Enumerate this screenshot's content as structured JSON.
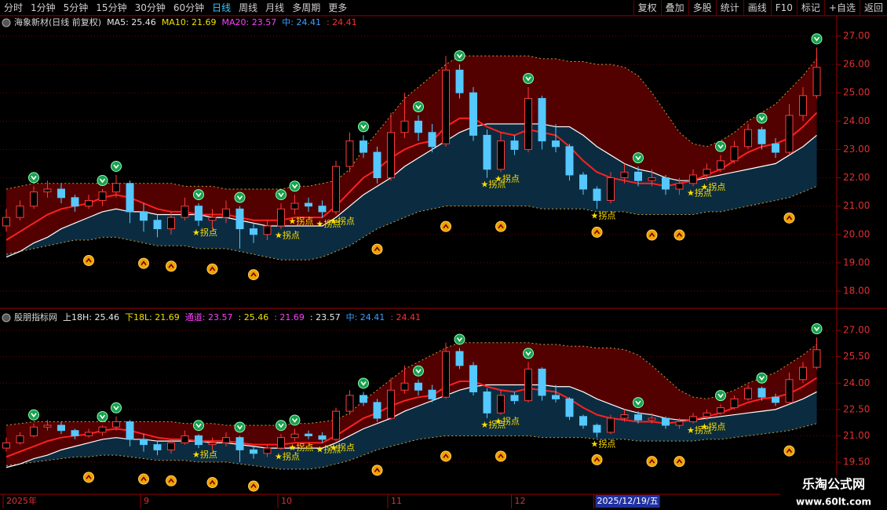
{
  "toolbar": {
    "left": [
      "分时",
      "1分钟",
      "5分钟",
      "15分钟",
      "30分钟",
      "60分钟",
      "日线",
      "周线",
      "月线",
      "多周期",
      "更多"
    ],
    "right": [
      "复权",
      "叠加",
      "多股",
      "统计",
      "画线",
      "F10",
      "标记",
      "+自选",
      "返回"
    ]
  },
  "watermark": [
    "乐淘公式网",
    "www.60lt.com"
  ],
  "chart_data": {
    "type": "candlestick",
    "categories": [
      "2025年",
      null,
      null,
      null,
      null,
      null,
      null,
      null,
      null,
      null,
      "9",
      null,
      null,
      null,
      null,
      null,
      null,
      null,
      null,
      null,
      "10",
      null,
      null,
      null,
      null,
      null,
      null,
      null,
      "11",
      null,
      null,
      null,
      null,
      null,
      null,
      null,
      null,
      "12",
      null,
      null,
      null,
      null,
      null,
      "2025/12/19/五",
      null,
      null,
      null,
      null,
      null,
      null,
      null,
      null,
      null,
      null,
      null,
      null,
      null,
      null,
      null,
      null
    ],
    "candles": [
      [
        20.3,
        20.9,
        20.1,
        20.6
      ],
      [
        20.6,
        21.2,
        20.5,
        21.0
      ],
      [
        21.0,
        21.7,
        20.9,
        21.5
      ],
      [
        21.5,
        21.9,
        21.3,
        21.6
      ],
      [
        21.6,
        21.8,
        21.1,
        21.3
      ],
      [
        21.3,
        21.4,
        20.8,
        21.0
      ],
      [
        21.0,
        21.4,
        20.9,
        21.2
      ],
      [
        21.2,
        21.6,
        21.0,
        21.5
      ],
      [
        21.5,
        22.1,
        21.3,
        21.8
      ],
      [
        21.8,
        21.9,
        20.4,
        20.8
      ],
      [
        20.8,
        21.1,
        20.1,
        20.5
      ],
      [
        20.5,
        20.7,
        19.9,
        20.2
      ],
      [
        20.2,
        20.8,
        20.0,
        20.6
      ],
      [
        20.6,
        21.3,
        20.5,
        21.0
      ],
      [
        21.0,
        21.1,
        20.3,
        20.5
      ],
      [
        20.5,
        20.9,
        20.2,
        20.6
      ],
      [
        20.6,
        21.2,
        20.4,
        20.9
      ],
      [
        20.9,
        21.0,
        19.5,
        20.2
      ],
      [
        20.2,
        20.4,
        19.7,
        20.0
      ],
      [
        20.0,
        20.5,
        19.8,
        20.3
      ],
      [
        20.3,
        21.1,
        20.2,
        20.9
      ],
      [
        20.9,
        21.4,
        20.7,
        21.1
      ],
      [
        21.1,
        21.3,
        20.8,
        21.0
      ],
      [
        21.0,
        21.2,
        20.6,
        20.8
      ],
      [
        20.8,
        22.6,
        20.7,
        22.4
      ],
      [
        22.4,
        23.6,
        22.2,
        23.3
      ],
      [
        23.3,
        23.5,
        22.7,
        22.9
      ],
      [
        22.9,
        23.1,
        21.8,
        22.0
      ],
      [
        22.0,
        24.3,
        21.9,
        23.6
      ],
      [
        23.6,
        25.0,
        23.4,
        24.0
      ],
      [
        24.0,
        24.2,
        23.3,
        23.6
      ],
      [
        23.6,
        23.9,
        22.9,
        23.1
      ],
      [
        23.2,
        26.3,
        23.1,
        25.8
      ],
      [
        25.8,
        26.0,
        24.8,
        25.0
      ],
      [
        25.0,
        25.2,
        23.3,
        23.5
      ],
      [
        23.5,
        23.7,
        22.0,
        22.3
      ],
      [
        22.3,
        23.6,
        22.2,
        23.3
      ],
      [
        23.3,
        23.5,
        22.8,
        23.0
      ],
      [
        23.0,
        25.2,
        22.9,
        24.8
      ],
      [
        24.8,
        24.9,
        23.0,
        23.3
      ],
      [
        23.3,
        23.9,
        22.9,
        23.1
      ],
      [
        23.1,
        23.2,
        21.9,
        22.1
      ],
      [
        22.1,
        22.2,
        21.4,
        21.6
      ],
      [
        21.6,
        21.7,
        20.9,
        21.2
      ],
      [
        21.2,
        22.2,
        21.1,
        22.0
      ],
      [
        22.0,
        22.5,
        21.8,
        22.2
      ],
      [
        22.2,
        22.4,
        21.7,
        21.9
      ],
      [
        21.9,
        22.3,
        21.7,
        22.0
      ],
      [
        22.0,
        22.1,
        21.4,
        21.6
      ],
      [
        21.6,
        22.0,
        21.4,
        21.8
      ],
      [
        21.8,
        22.3,
        21.7,
        22.1
      ],
      [
        22.1,
        22.5,
        21.9,
        22.3
      ],
      [
        22.3,
        22.8,
        22.2,
        22.6
      ],
      [
        22.6,
        23.3,
        22.5,
        23.1
      ],
      [
        23.1,
        23.9,
        23.0,
        23.7
      ],
      [
        23.7,
        23.8,
        23.0,
        23.2
      ],
      [
        23.2,
        23.4,
        22.7,
        22.9
      ],
      [
        22.9,
        24.6,
        22.8,
        24.2
      ],
      [
        24.2,
        25.2,
        24.0,
        24.9
      ],
      [
        24.9,
        26.6,
        24.8,
        25.9
      ]
    ],
    "upper": [
      21.6,
      21.7,
      21.8,
      21.8,
      21.8,
      21.8,
      21.8,
      21.8,
      21.8,
      21.8,
      21.8,
      21.8,
      21.8,
      21.7,
      21.7,
      21.7,
      21.6,
      21.6,
      21.6,
      21.6,
      21.6,
      21.7,
      21.7,
      21.8,
      21.9,
      22.3,
      23.0,
      23.6,
      24.2,
      24.8,
      25.2,
      25.6,
      26.0,
      26.3,
      26.3,
      26.3,
      26.3,
      26.3,
      26.3,
      26.2,
      26.2,
      26.1,
      26.1,
      26.0,
      26.0,
      25.9,
      25.6,
      25.0,
      24.3,
      23.6,
      23.2,
      23.1,
      23.3,
      23.6,
      24.0,
      24.3,
      24.6,
      25.1,
      25.6,
      26.2
    ],
    "lower": [
      19.3,
      19.4,
      19.5,
      19.6,
      19.7,
      19.8,
      19.8,
      19.9,
      19.9,
      19.8,
      19.7,
      19.6,
      19.6,
      19.6,
      19.5,
      19.5,
      19.5,
      19.4,
      19.3,
      19.2,
      19.1,
      19.1,
      19.1,
      19.2,
      19.4,
      19.6,
      19.9,
      20.2,
      20.4,
      20.6,
      20.8,
      20.9,
      21.0,
      21.0,
      21.0,
      21.0,
      21.0,
      21.0,
      21.0,
      20.9,
      20.9,
      20.9,
      20.9,
      20.8,
      20.8,
      20.8,
      20.7,
      20.7,
      20.7,
      20.7,
      20.7,
      20.8,
      20.8,
      20.9,
      21.0,
      21.1,
      21.2,
      21.3,
      21.5,
      21.7
    ],
    "mid": [
      19.2,
      19.4,
      19.7,
      19.9,
      20.2,
      20.4,
      20.6,
      20.8,
      20.9,
      20.8,
      20.8,
      20.7,
      20.7,
      20.7,
      20.7,
      20.6,
      20.6,
      20.5,
      20.4,
      20.3,
      20.3,
      20.3,
      20.3,
      20.3,
      20.6,
      21.0,
      21.4,
      21.7,
      22.0,
      22.4,
      22.7,
      23.0,
      23.3,
      23.6,
      23.8,
      23.9,
      23.9,
      23.9,
      23.9,
      23.9,
      23.8,
      23.8,
      23.5,
      23.1,
      22.8,
      22.5,
      22.3,
      22.2,
      22.0,
      21.9,
      21.9,
      22.0,
      22.1,
      22.2,
      22.3,
      22.4,
      22.5,
      22.8,
      23.1,
      23.5
    ],
    "ma": [
      19.8,
      20.1,
      20.4,
      20.7,
      20.9,
      21.0,
      21.1,
      21.3,
      21.4,
      21.3,
      21.1,
      20.9,
      20.8,
      20.8,
      20.7,
      20.7,
      20.7,
      20.6,
      20.5,
      20.5,
      20.5,
      20.6,
      20.6,
      20.6,
      21.0,
      21.5,
      22.0,
      22.3,
      22.7,
      23.0,
      23.2,
      23.3,
      23.8,
      24.1,
      24.1,
      23.8,
      23.6,
      23.5,
      23.7,
      23.6,
      23.5,
      23.1,
      22.6,
      22.2,
      22.0,
      21.9,
      21.8,
      21.8,
      21.7,
      21.8,
      21.9,
      22.1,
      22.3,
      22.6,
      22.9,
      23.1,
      23.2,
      23.4,
      23.8,
      24.3
    ],
    "colors": {
      "up": "#ff3a3a",
      "down": "#54c8ff",
      "upper_fill": "#520000",
      "lower_fill": "#0b2c40",
      "band_edge": "#c89a40",
      "mid": "#ffffff",
      "ma": "#ff2020"
    },
    "signals": {
      "sell": [
        2,
        7,
        8,
        14,
        17,
        20,
        21,
        26,
        30,
        33,
        38,
        46,
        52,
        55,
        59
      ],
      "buy": [
        6,
        10,
        12,
        15,
        18,
        27,
        32,
        36,
        43,
        47,
        49,
        57
      ],
      "pivot": [
        14,
        20,
        21,
        23,
        24,
        35,
        36,
        43,
        50,
        51
      ]
    },
    "pivot_label": "★拐点",
    "panels": [
      {
        "legend": [
          {
            "text": "海象新材(日线 前复权)",
            "color": "#d8d8d8"
          },
          {
            "text": "MA5: 25.46",
            "color": "#e8e8e8"
          },
          {
            "text": "MA10: 21.69",
            "color": "#f0e000"
          },
          {
            "text": "MA20: 23.57",
            "color": "#ff40ff"
          },
          {
            "text": "中: 24.41",
            "color": "#3ea0ff"
          },
          {
            "text": ": 24.41",
            "color": "#ff3030"
          }
        ],
        "ylim": [
          17.53,
          27.72
        ],
        "yticks": [
          {
            "value": 27,
            "label": "27.00"
          },
          {
            "value": 26,
            "label": "26.00"
          },
          {
            "value": 25,
            "label": "25.00"
          },
          {
            "value": 24,
            "label": "24.00"
          },
          {
            "value": 23,
            "label": "23.00"
          },
          {
            "value": 22,
            "label": "22.00"
          },
          {
            "value": 21,
            "label": "21.00"
          },
          {
            "value": 20,
            "label": "20.00"
          },
          {
            "value": 19,
            "label": "19.00"
          },
          {
            "value": 18,
            "label": "18.00"
          }
        ]
      },
      {
        "legend": [
          {
            "text": "股朋指标网",
            "color": "#d8d8d8"
          },
          {
            "text": "上18H: 25.46",
            "color": "#e8e8e8"
          },
          {
            "text": "下18L: 21.69",
            "color": "#f0e000"
          },
          {
            "text": "通道: 23.57",
            "color": "#ff40ff"
          },
          {
            "text": ": 25.46",
            "color": "#f0e000"
          },
          {
            "text": ": 21.69",
            "color": "#ff40ff"
          },
          {
            "text": ": 23.57",
            "color": "#e8e8e8"
          },
          {
            "text": "中: 24.41",
            "color": "#3ea0ff"
          },
          {
            "text": ": 24.41",
            "color": "#ff3030"
          }
        ],
        "ylim": [
          17.76,
          28.12
        ],
        "yticks": [
          {
            "value": 27,
            "label": "27.00"
          },
          {
            "value": 25.5,
            "label": "25.50"
          },
          {
            "value": 24,
            "label": "24.00"
          },
          {
            "value": 22.5,
            "label": "22.50"
          },
          {
            "value": 21,
            "label": "21.00"
          },
          {
            "value": 19.5,
            "label": "19.50"
          }
        ]
      }
    ]
  }
}
